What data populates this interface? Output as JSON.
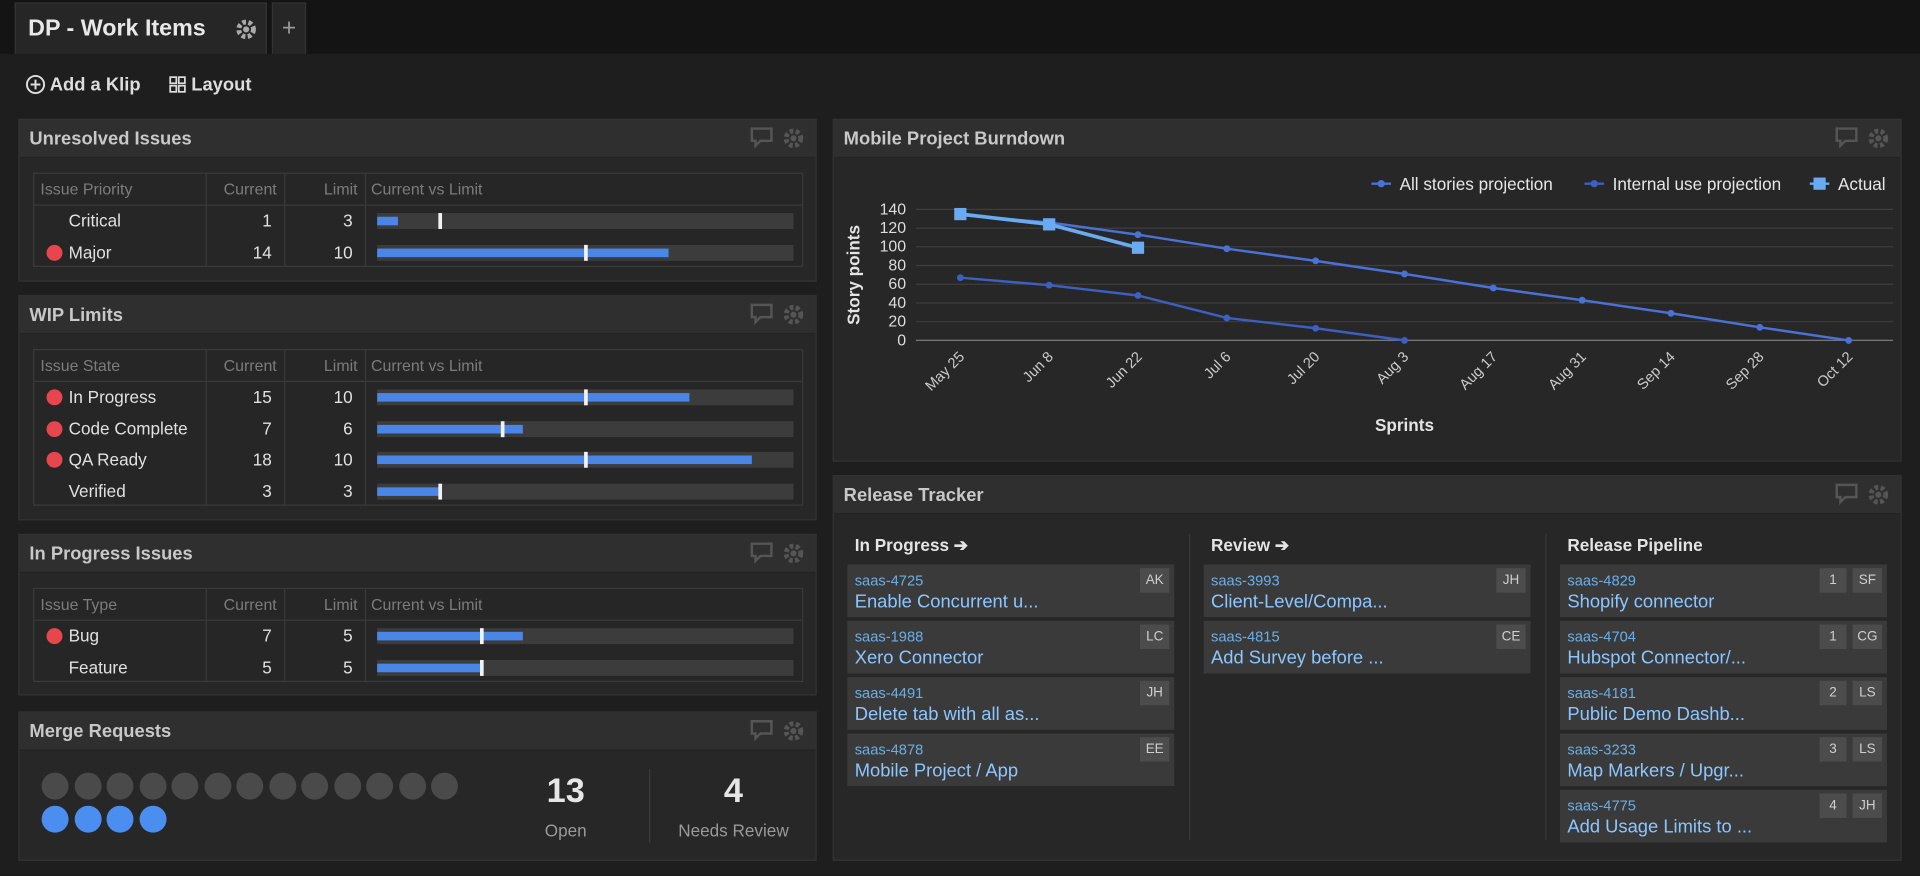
{
  "tabs": {
    "title": "DP - Work Items"
  },
  "toolbar": {
    "add": "Add a Klip",
    "layout": "Layout"
  },
  "panels": {
    "unresolved": {
      "title": "Unresolved Issues",
      "columns": [
        "Issue Priority",
        "Current",
        "Limit",
        "Current vs Limit"
      ],
      "bar_range": [
        0,
        20
      ],
      "rows": [
        {
          "label": "Critical",
          "current": 1,
          "limit": 3,
          "alert": false
        },
        {
          "label": "Major",
          "current": 14,
          "limit": 10,
          "alert": true
        }
      ]
    },
    "wip": {
      "title": "WIP Limits",
      "columns": [
        "Issue State",
        "Current",
        "Limit",
        "Current vs Limit"
      ],
      "bar_range": [
        0,
        20
      ],
      "rows": [
        {
          "label": "In Progress",
          "current": 15,
          "limit": 10,
          "alert": true
        },
        {
          "label": "Code Complete",
          "current": 7,
          "limit": 6,
          "alert": true
        },
        {
          "label": "QA Ready",
          "current": 18,
          "limit": 10,
          "alert": true
        },
        {
          "label": "Verified",
          "current": 3,
          "limit": 3,
          "alert": false
        }
      ]
    },
    "in_progress": {
      "title": "In Progress Issues",
      "columns": [
        "Issue Type",
        "Current",
        "Limit",
        "Current vs Limit"
      ],
      "bar_range": [
        0,
        20
      ],
      "rows": [
        {
          "label": "Bug",
          "current": 7,
          "limit": 5,
          "alert": true
        },
        {
          "label": "Feature",
          "current": 5,
          "limit": 5,
          "alert": false
        }
      ]
    },
    "merge": {
      "title": "Merge Requests",
      "open": 13,
      "open_label": "Open",
      "review": 4,
      "review_label": "Needs Review"
    }
  },
  "chart_data": {
    "type": "line",
    "title": "Mobile Project Burndown",
    "x_label": "Sprints",
    "y_label": "Story points",
    "categories": [
      "May 25",
      "Jun 8",
      "Jun 22",
      "Jul 6",
      "Jul 20",
      "Aug 3",
      "Aug 17",
      "Aug 31",
      "Sep 14",
      "Sep 28",
      "Oct 12"
    ],
    "ylim": [
      0,
      140
    ],
    "yticks": [
      0,
      20,
      40,
      60,
      80,
      100,
      120,
      140
    ],
    "grid": true,
    "legend": "top-right",
    "series": [
      {
        "name": "All stories projection",
        "color": "#4a72d6",
        "marker": "circle",
        "values": [
          134,
          126,
          113,
          98,
          85,
          71,
          56,
          43,
          29,
          14,
          0
        ]
      },
      {
        "name": "Internal use projection",
        "color": "#3d5fbf",
        "marker": "circle",
        "values": [
          67,
          59,
          48,
          24,
          13,
          0,
          null,
          null,
          null,
          null,
          null
        ]
      },
      {
        "name": "Actual",
        "color": "#6aaaf0",
        "marker": "square",
        "values": [
          135,
          124,
          99,
          null,
          null,
          null,
          null,
          null,
          null,
          null,
          null
        ]
      }
    ]
  },
  "release": {
    "title": "Release Tracker",
    "columns": [
      {
        "title": "In Progress ➔",
        "cards": [
          {
            "id": "saas-4725",
            "title": "Enable Concurrent u...",
            "owner": "AK"
          },
          {
            "id": "saas-1988",
            "title": "Xero Connector",
            "owner": "LC"
          },
          {
            "id": "saas-4491",
            "title": "Delete tab with all as...",
            "owner": "JH"
          },
          {
            "id": "saas-4878",
            "title": "Mobile Project / App",
            "owner": "EE"
          }
        ]
      },
      {
        "title": "Review ➔",
        "cards": [
          {
            "id": "saas-3993",
            "title": "Client-Level/Compa...",
            "owner": "JH"
          },
          {
            "id": "saas-4815",
            "title": "Add Survey before ...",
            "owner": "CE"
          }
        ]
      },
      {
        "title": "Release Pipeline",
        "cards": [
          {
            "id": "saas-4829",
            "title": "Shopify connector",
            "owner": "SF",
            "count": 1
          },
          {
            "id": "saas-4704",
            "title": "Hubspot Connector/...",
            "owner": "CG",
            "count": 1
          },
          {
            "id": "saas-4181",
            "title": "Public Demo Dashb...",
            "owner": "LS",
            "count": 2
          },
          {
            "id": "saas-3233",
            "title": "Map Markers / Upgr...",
            "owner": "LS",
            "count": 3
          },
          {
            "id": "saas-4775",
            "title": "Add Usage Limits to ...",
            "owner": "JH",
            "count": 4
          }
        ]
      }
    ]
  }
}
